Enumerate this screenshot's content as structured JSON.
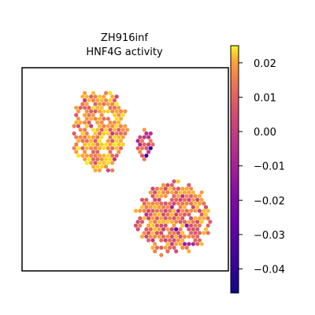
{
  "chart_data": {
    "type": "scatter",
    "title_line1": "ZH916inf",
    "title_line2": "HNF4G activity",
    "xlabel": "",
    "ylabel": "",
    "grid": false,
    "legend": "colorbar-right",
    "colormap": "plasma",
    "colorbar": {
      "vmin": -0.047,
      "vmax": 0.025,
      "ticks": [
        0.02,
        0.01,
        0.0,
        -0.01,
        -0.02,
        -0.03,
        -0.04
      ],
      "tick_labels": [
        "0.02",
        "0.01",
        "0.00",
        "−0.01",
        "−0.02",
        "−0.03",
        "−0.04"
      ]
    },
    "regions": [
      {
        "x": [
          0.23,
          0.52
        ],
        "y": [
          0.09,
          0.53
        ],
        "mean_value": 0.008
      },
      {
        "x": [
          0.54,
          0.93
        ],
        "y": [
          0.55,
          0.94
        ],
        "mean_value": 0.002
      },
      {
        "x": [
          0.55,
          0.64
        ],
        "y": [
          0.3,
          0.46
        ],
        "mean_value": -0.006
      }
    ]
  }
}
